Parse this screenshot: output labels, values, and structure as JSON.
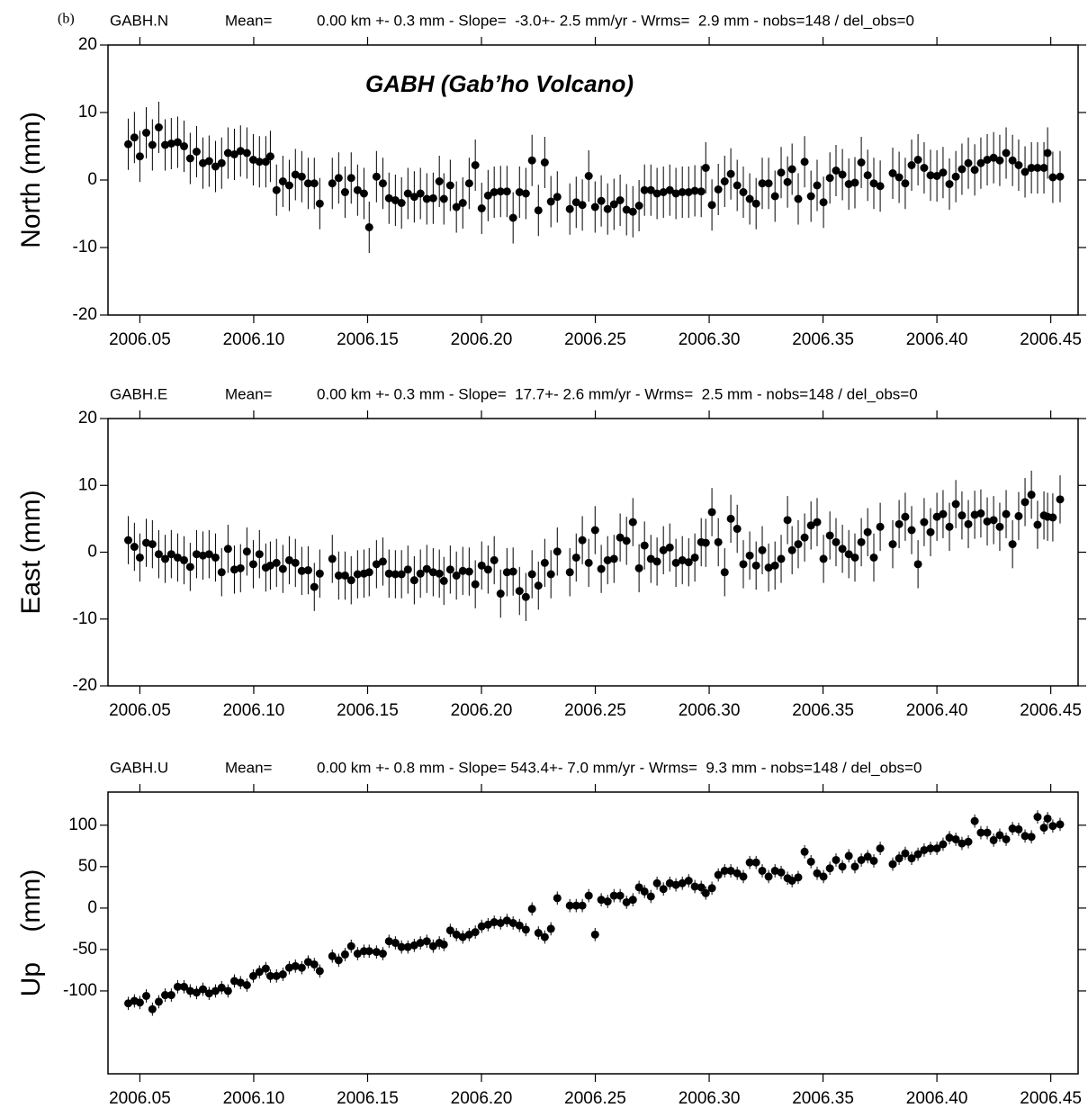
{
  "chart_data": [
    {
      "type": "scatter",
      "panel_label": "(b)",
      "title": "GABH.N",
      "subtitle_left": "Mean=",
      "subtitle": "0.00 km +- 0.3 mm - Slope=  -3.0+- 2.5 mm/yr - Wrms=  2.9 mm - nobs=148 / del_obs=0",
      "annotation": "GABH (Gab’ho Volcano)",
      "ylabel": "North (mm)",
      "color": "#000000",
      "xlim": [
        2006.036,
        2006.462
      ],
      "ylim": [
        -20,
        20
      ],
      "xticks": [
        2006.05,
        {
          "value": 2006.1,
          "label": "2006.10"
        },
        2006.15,
        {
          "value": 2006.2,
          "label": "2006.20"
        },
        2006.25,
        {
          "value": 2006.3,
          "label": "2006.30"
        },
        2006.35,
        {
          "value": 2006.4,
          "label": "2006.40"
        },
        2006.45
      ],
      "yticks": [
        -20,
        -10,
        0,
        10,
        20
      ],
      "error": 3.8,
      "x": [
        2006.0449,
        2006.0476,
        2006.05,
        2006.0528,
        2006.0555,
        2006.0583,
        2006.0611,
        2006.0638,
        2006.0666,
        2006.0694,
        2006.0721,
        2006.0749,
        2006.0777,
        2006.0804,
        2006.0832,
        2006.0859,
        2006.0887,
        2006.0915,
        2006.0942,
        2006.097,
        2006.0998,
        2006.1025,
        2006.1053,
        2006.1073,
        2006.11,
        2006.1128,
        2006.1156,
        2006.1183,
        2006.1211,
        2006.1239,
        2006.1266,
        2006.129,
        2006.1345,
        2006.1373,
        2006.1401,
        2006.1428,
        2006.1456,
        2006.1484,
        2006.1507,
        2006.1539,
        2006.1567,
        2006.1594,
        2006.1622,
        2006.1649,
        2006.1677,
        2006.1705,
        2006.1732,
        2006.176,
        2006.1788,
        2006.1815,
        2006.1835,
        2006.1863,
        2006.189,
        2006.1918,
        2006.1946,
        2006.1973,
        2006.2001,
        2006.2029,
        2006.2056,
        2006.2084,
        2006.2112,
        2006.2139,
        2006.2167,
        2006.2195,
        2006.2222,
        2006.225,
        2006.2278,
        2006.2305,
        2006.2333,
        2006.2388,
        2006.2416,
        2006.2443,
        2006.2471,
        2006.2499,
        2006.2526,
        2006.2554,
        2006.2582,
        2006.2609,
        2006.2637,
        2006.2665,
        2006.2692,
        2006.2716,
        2006.2744,
        2006.2771,
        2006.2799,
        2006.2827,
        2006.2854,
        2006.2882,
        2006.291,
        2006.2937,
        2006.2965,
        2006.2985,
        2006.3012,
        2006.304,
        2006.3068,
        2006.3095,
        2006.3123,
        2006.315,
        2006.3178,
        2006.3206,
        2006.3233,
        2006.3261,
        2006.3289,
        2006.3316,
        2006.3344,
        2006.3364,
        2006.3391,
        2006.3419,
        2006.3447,
        2006.3474,
        2006.3502,
        2006.353,
        2006.3557,
        2006.3585,
        2006.3613,
        2006.364,
        2006.3668,
        2006.3696,
        2006.3723,
        2006.3751,
        2006.3806,
        2006.3834,
        2006.3861,
        2006.3889,
        2006.3917,
        2006.3944,
        2006.3972,
        2006.4,
        2006.4027,
        2006.4055,
        2006.4083,
        2006.411,
        2006.4138,
        2006.4166,
        2006.4193,
        2006.4221,
        2006.4249,
        2006.4276,
        2006.4304,
        2006.4332,
        2006.4359,
        2006.4387,
        2006.4415,
        2006.4442,
        2006.447,
        2006.4486,
        2006.4509,
        2006.4541
      ],
      "values": [
        5.3,
        6.3,
        3.5,
        7.0,
        5.2,
        7.8,
        5.2,
        5.4,
        5.6,
        5.0,
        3.2,
        4.2,
        2.5,
        2.8,
        2.0,
        2.5,
        4.0,
        3.8,
        4.3,
        4.0,
        3.0,
        2.7,
        2.7,
        3.5,
        -1.5,
        -0.2,
        -0.8,
        0.8,
        0.5,
        -0.5,
        -0.5,
        -3.5,
        -0.5,
        0.3,
        -1.8,
        0.3,
        -1.5,
        -2.0,
        -7.0,
        0.5,
        -0.5,
        -2.7,
        -3.0,
        -3.4,
        -2.0,
        -2.5,
        -2.0,
        -2.8,
        -2.7,
        -0.2,
        -2.8,
        -0.8,
        -4.0,
        -3.4,
        -0.5,
        2.2,
        -4.2,
        -2.3,
        -1.8,
        -1.7,
        -1.7,
        -5.6,
        -1.8,
        -2.0,
        2.9,
        -4.5,
        2.6,
        -3.2,
        -2.5,
        -4.3,
        -3.3,
        -3.7,
        0.6,
        -4.0,
        -3.1,
        -4.3,
        -3.6,
        -3.0,
        -4.4,
        -4.7,
        -3.8,
        -1.5,
        -1.5,
        -2.0,
        -1.8,
        -1.5,
        -2.0,
        -1.8,
        -1.8,
        -1.6,
        -1.7,
        1.8,
        -3.7,
        -1.4,
        -0.2,
        0.9,
        -0.8,
        -1.8,
        -2.8,
        -3.5,
        -0.5,
        -0.5,
        -2.4,
        1.1,
        -0.3,
        1.6,
        -2.8,
        2.7,
        -2.4,
        -0.8,
        -3.3,
        0.3,
        1.4,
        0.8,
        -0.6,
        -0.4,
        2.6,
        0.7,
        -0.5,
        -0.9,
        1.0,
        0.4,
        -0.5,
        2.2,
        3.0,
        1.8,
        0.7,
        0.6,
        1.1,
        -0.6,
        0.5,
        1.6,
        2.5,
        1.5,
        2.5,
        3.0,
        3.3,
        2.9,
        4.0,
        2.9,
        2.2,
        1.2,
        1.8,
        1.8,
        1.8,
        4.0,
        0.4,
        0.5
      ]
    },
    {
      "type": "scatter",
      "title": "GABH.E",
      "subtitle_left": "Mean=",
      "subtitle": "0.00 km +- 0.3 mm - Slope=  17.7+- 2.6 mm/yr - Wrms=  2.5 mm - nobs=148 / del_obs=0",
      "ylabel": "East (mm)",
      "color": "#000000",
      "xlim": [
        2006.036,
        2006.462
      ],
      "ylim": [
        -20,
        20
      ],
      "xticks": [
        2006.05,
        {
          "value": 2006.1,
          "label": "2006.10"
        },
        2006.15,
        {
          "value": 2006.2,
          "label": "2006.20"
        },
        2006.25,
        {
          "value": 2006.3,
          "label": "2006.30"
        },
        2006.35,
        {
          "value": 2006.4,
          "label": "2006.40"
        },
        2006.45
      ],
      "yticks": [
        -20,
        -10,
        0,
        10,
        20
      ],
      "error": 3.6,
      "x": [
        2006.0449,
        2006.0476,
        2006.05,
        2006.0528,
        2006.0555,
        2006.0583,
        2006.0611,
        2006.0638,
        2006.0666,
        2006.0694,
        2006.0721,
        2006.0749,
        2006.0777,
        2006.0804,
        2006.0832,
        2006.0859,
        2006.0887,
        2006.0915,
        2006.0942,
        2006.097,
        2006.0998,
        2006.1025,
        2006.1053,
        2006.1073,
        2006.11,
        2006.1128,
        2006.1156,
        2006.1183,
        2006.1211,
        2006.1239,
        2006.1266,
        2006.129,
        2006.1345,
        2006.1373,
        2006.1401,
        2006.1428,
        2006.1456,
        2006.1484,
        2006.1507,
        2006.1539,
        2006.1567,
        2006.1594,
        2006.1622,
        2006.1649,
        2006.1677,
        2006.1705,
        2006.1732,
        2006.176,
        2006.1788,
        2006.1815,
        2006.1835,
        2006.1863,
        2006.189,
        2006.1918,
        2006.1946,
        2006.1973,
        2006.2001,
        2006.2029,
        2006.2056,
        2006.2084,
        2006.2112,
        2006.2139,
        2006.2167,
        2006.2195,
        2006.2222,
        2006.225,
        2006.2278,
        2006.2305,
        2006.2333,
        2006.2388,
        2006.2416,
        2006.2443,
        2006.2471,
        2006.2499,
        2006.2526,
        2006.2554,
        2006.2582,
        2006.2609,
        2006.2637,
        2006.2665,
        2006.2692,
        2006.2716,
        2006.2744,
        2006.2771,
        2006.2799,
        2006.2827,
        2006.2854,
        2006.2882,
        2006.291,
        2006.2937,
        2006.2965,
        2006.2985,
        2006.3012,
        2006.304,
        2006.3068,
        2006.3095,
        2006.3123,
        2006.315,
        2006.3178,
        2006.3206,
        2006.3233,
        2006.3261,
        2006.3289,
        2006.3316,
        2006.3344,
        2006.3364,
        2006.3391,
        2006.3419,
        2006.3447,
        2006.3474,
        2006.3502,
        2006.353,
        2006.3557,
        2006.3585,
        2006.3613,
        2006.364,
        2006.3668,
        2006.3696,
        2006.3723,
        2006.3751,
        2006.3806,
        2006.3834,
        2006.3861,
        2006.3889,
        2006.3917,
        2006.3944,
        2006.3972,
        2006.4,
        2006.4027,
        2006.4055,
        2006.4083,
        2006.411,
        2006.4138,
        2006.4166,
        2006.4193,
        2006.4221,
        2006.4249,
        2006.4276,
        2006.4304,
        2006.4332,
        2006.4359,
        2006.4387,
        2006.4415,
        2006.4442,
        2006.447,
        2006.4486,
        2006.4509,
        2006.4541
      ],
      "values": [
        1.8,
        0.8,
        -0.8,
        1.4,
        1.2,
        -0.3,
        -1.0,
        -0.3,
        -0.8,
        -1.2,
        -2.2,
        -0.3,
        -0.5,
        -0.3,
        -0.8,
        -3.0,
        0.5,
        -2.6,
        -2.4,
        0.1,
        -1.8,
        -0.3,
        -2.3,
        -2.0,
        -1.6,
        -2.5,
        -1.2,
        -1.6,
        -2.8,
        -2.7,
        -5.2,
        -3.2,
        -1.0,
        -3.5,
        -3.5,
        -4.2,
        -3.3,
        -3.2,
        -3.0,
        -1.8,
        -1.4,
        -3.2,
        -3.3,
        -3.3,
        -2.6,
        -4.2,
        -3.2,
        -2.5,
        -3.0,
        -3.2,
        -4.3,
        -2.6,
        -3.5,
        -2.8,
        -2.9,
        -4.8,
        -2.0,
        -2.6,
        -1.2,
        -6.2,
        -3.0,
        -2.9,
        -5.8,
        -6.7,
        -3.3,
        -5.0,
        -1.6,
        -3.3,
        0.1,
        -3.0,
        -0.8,
        1.8,
        -1.6,
        3.3,
        -2.5,
        -1.2,
        -1.0,
        2.2,
        1.7,
        4.5,
        -2.4,
        1.0,
        -1.0,
        -1.4,
        0.3,
        0.7,
        -1.6,
        -1.2,
        -1.5,
        -0.8,
        1.5,
        1.4,
        6.0,
        1.5,
        -3.0,
        5.0,
        3.5,
        -1.8,
        -0.5,
        -2.0,
        0.3,
        -2.3,
        -2.0,
        -1.0,
        4.8,
        0.3,
        1.2,
        2.2,
        4.0,
        4.5,
        -1.0,
        2.5,
        1.5,
        0.5,
        -0.3,
        -0.8,
        1.5,
        3.0,
        -0.8,
        3.8,
        1.2,
        4.2,
        5.3,
        3.3,
        -1.8,
        4.5,
        3.0,
        5.3,
        5.7,
        3.8,
        7.2,
        5.5,
        4.2,
        5.6,
        5.8,
        4.6,
        4.8,
        3.8,
        5.7,
        1.2,
        5.4,
        7.5,
        8.6,
        4.1,
        5.5,
        5.3,
        5.2,
        7.9
      ]
    },
    {
      "type": "scatter",
      "title": "GABH.U",
      "subtitle_left": "Mean=",
      "subtitle": "0.00 km +- 0.8 mm - Slope= 543.4+- 7.0 mm/yr - Wrms=  9.3 mm - nobs=148 / del_obs=0",
      "ylabel": "Up    (mm)",
      "color": "#000000",
      "xlim": [
        2006.036,
        2006.462
      ],
      "ylim": [
        -200,
        140
      ],
      "xticks": [
        2006.05,
        {
          "value": 2006.1,
          "label": "2006.10"
        },
        2006.15,
        {
          "value": 2006.2,
          "label": "2006.20"
        },
        2006.25,
        {
          "value": 2006.3,
          "label": "2006.30"
        },
        2006.35,
        {
          "value": 2006.4,
          "label": "2006.40"
        },
        2006.45
      ],
      "yticks": [
        -100,
        -50,
        0,
        50,
        100
      ],
      "error": 8,
      "x": [
        2006.0449,
        2006.0476,
        2006.05,
        2006.0528,
        2006.0555,
        2006.0583,
        2006.0611,
        2006.0638,
        2006.0666,
        2006.0694,
        2006.0721,
        2006.0749,
        2006.0777,
        2006.0804,
        2006.0832,
        2006.0859,
        2006.0887,
        2006.0915,
        2006.0942,
        2006.097,
        2006.0998,
        2006.1025,
        2006.1053,
        2006.1073,
        2006.11,
        2006.1128,
        2006.1156,
        2006.1183,
        2006.1211,
        2006.1239,
        2006.1266,
        2006.129,
        2006.1345,
        2006.1373,
        2006.1401,
        2006.1428,
        2006.1456,
        2006.1484,
        2006.1507,
        2006.1539,
        2006.1567,
        2006.1594,
        2006.1622,
        2006.1649,
        2006.1677,
        2006.1705,
        2006.1732,
        2006.176,
        2006.1788,
        2006.1815,
        2006.1835,
        2006.1863,
        2006.189,
        2006.1918,
        2006.1946,
        2006.1973,
        2006.2001,
        2006.2029,
        2006.2056,
        2006.2084,
        2006.2112,
        2006.2139,
        2006.2167,
        2006.2195,
        2006.2222,
        2006.225,
        2006.2278,
        2006.2305,
        2006.2333,
        2006.2388,
        2006.2416,
        2006.2443,
        2006.2471,
        2006.2499,
        2006.2526,
        2006.2554,
        2006.2582,
        2006.2609,
        2006.2637,
        2006.2665,
        2006.2692,
        2006.2716,
        2006.2744,
        2006.2771,
        2006.2799,
        2006.2827,
        2006.2854,
        2006.2882,
        2006.291,
        2006.2937,
        2006.2965,
        2006.2985,
        2006.3012,
        2006.304,
        2006.3068,
        2006.3095,
        2006.3123,
        2006.315,
        2006.3178,
        2006.3206,
        2006.3233,
        2006.3261,
        2006.3289,
        2006.3316,
        2006.3344,
        2006.3364,
        2006.3391,
        2006.3419,
        2006.3447,
        2006.3474,
        2006.3502,
        2006.353,
        2006.3557,
        2006.3585,
        2006.3613,
        2006.364,
        2006.3668,
        2006.3696,
        2006.3723,
        2006.3751,
        2006.3806,
        2006.3834,
        2006.3861,
        2006.3889,
        2006.3917,
        2006.3944,
        2006.3972,
        2006.4,
        2006.4027,
        2006.4055,
        2006.4083,
        2006.411,
        2006.4138,
        2006.4166,
        2006.4193,
        2006.4221,
        2006.4249,
        2006.4276,
        2006.4304,
        2006.4332,
        2006.4359,
        2006.4387,
        2006.4415,
        2006.4442,
        2006.447,
        2006.4486,
        2006.4509,
        2006.4541
      ],
      "values": [
        -115,
        -112,
        -114,
        -106,
        -122,
        -113,
        -105,
        -105,
        -95,
        -95,
        -100,
        -102,
        -98,
        -103,
        -100,
        -96,
        -100,
        -88,
        -90,
        -93,
        -82,
        -77,
        -73,
        -82,
        -82,
        -80,
        -72,
        -70,
        -72,
        -65,
        -68,
        -76,
        -58,
        -63,
        -56,
        -46,
        -55,
        -52,
        -52,
        -53,
        -55,
        -40,
        -42,
        -47,
        -47,
        -45,
        -42,
        -40,
        -46,
        -42,
        -44,
        -27,
        -32,
        -35,
        -32,
        -29,
        -22,
        -20,
        -17,
        -18,
        -15,
        -18,
        -21,
        -26,
        -1,
        -30,
        -35,
        -25,
        12,
        3,
        3,
        3,
        15,
        -32,
        10,
        8,
        15,
        15,
        7,
        10,
        25,
        20,
        14,
        30,
        23,
        30,
        28,
        30,
        33,
        26,
        25,
        18,
        24,
        40,
        45,
        45,
        42,
        38,
        55,
        55,
        45,
        38,
        45,
        43,
        36,
        33,
        37,
        68,
        56,
        42,
        38,
        48,
        58,
        50,
        63,
        50,
        58,
        62,
        57,
        72,
        53,
        60,
        66,
        60,
        65,
        70,
        72,
        72,
        77,
        85,
        83,
        78,
        80,
        105,
        91,
        91,
        82,
        88,
        83,
        96,
        95,
        87,
        86,
        110,
        97,
        108,
        99,
        101
      ]
    }
  ]
}
